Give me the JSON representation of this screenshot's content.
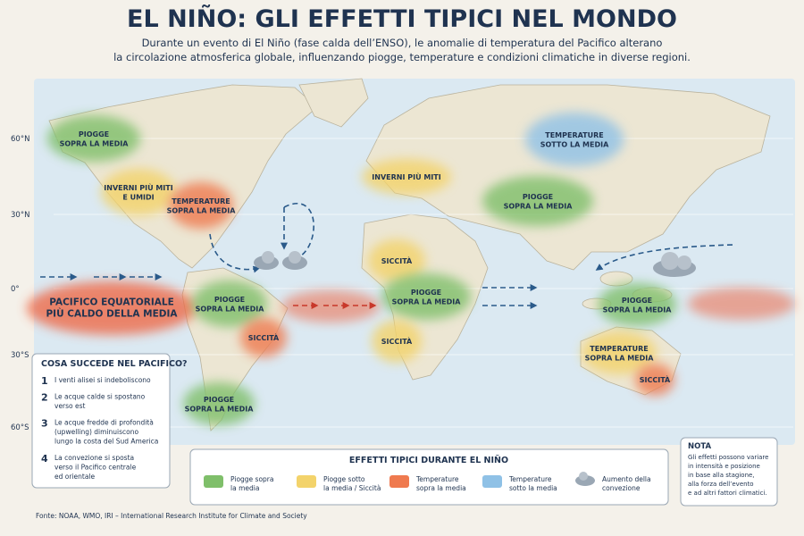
{
  "header": {
    "title": "EL NIÑO: GLI EFFETTI TIPICI NEL MONDO",
    "subtitle": [
      "Durante un evento di El Niño (fase calda dell’ENSO), le anomalie di temperatura del Pacifico alterano",
      "la circolazione atmosferica globale, influenzando piogge, temperature e condizioni climatiche in diverse regioni."
    ]
  },
  "latitudes": [
    "60°N",
    "30°N",
    "0°",
    "30°S",
    "60°S"
  ],
  "regions": [
    {
      "lines": [
        "PIOGGE",
        "SOPRA LA MEDIA"
      ],
      "color": "#7fbf6a"
    },
    {
      "lines": [
        "INVERNI PIÙ MITI",
        "E UMIDI"
      ],
      "color": "#f3d36b"
    },
    {
      "lines": [
        "TEMPERATURE",
        "SOPRA LA MEDIA"
      ],
      "color": "#ef7a4f"
    },
    {
      "lines": [
        "PACIFICO EQUATORIALE",
        "PIÙ CALDO DELLA MEDIA"
      ],
      "color": "#ee6a4a"
    },
    {
      "lines": [
        "PIOGGE",
        "SOPRA LA MEDIA"
      ],
      "color": "#7fbf6a"
    },
    {
      "lines": [
        "SICCITÀ"
      ],
      "color": "#ef7a4f"
    },
    {
      "lines": [
        "PIOGGE",
        "SOPRA LA MEDIA"
      ],
      "color": "#7fbf6a"
    },
    {
      "lines": [
        "INVERNI PIÙ MITI"
      ],
      "color": "#f3d36b"
    },
    {
      "lines": [
        "SICCITÀ"
      ],
      "color": "#f3d36b"
    },
    {
      "lines": [
        "PIOGGE",
        "SOPRA LA MEDIA"
      ],
      "color": "#7fbf6a"
    },
    {
      "lines": [
        "SICCITÀ"
      ],
      "color": "#f3d36b"
    },
    {
      "lines": [
        "TEMPERATURE",
        "SOTTO LA MEDIA"
      ],
      "color": "#8fc1e6"
    },
    {
      "lines": [
        "PIOGGE",
        "SOPRA LA MEDIA"
      ],
      "color": "#7fbf6a"
    },
    {
      "lines": [
        "PIOGGE",
        "SOPRA LA MEDIA"
      ],
      "color": "#7fbf6a"
    },
    {
      "lines": [
        "TEMPERATURE",
        "SOPRA LA MEDIA"
      ],
      "color": "#f3d36b"
    },
    {
      "lines": [
        "SICCITÀ"
      ],
      "color": "#ef7a4f"
    }
  ],
  "pacific_box": {
    "title": "COSA SUCCEDE NEL PACIFICO?",
    "steps": [
      {
        "number": 1,
        "lines": [
          "I venti alisei si indeboliscono"
        ]
      },
      {
        "number": 2,
        "lines": [
          "Le acque calde si spostano",
          "verso est"
        ]
      },
      {
        "number": 3,
        "lines": [
          "Le acque fredde di profondità",
          "(upwelling) diminuiscono",
          "lungo la costa del Sud America"
        ]
      },
      {
        "number": 4,
        "lines": [
          "La convezione si sposta",
          "verso il Pacifico centrale",
          "ed orientale"
        ]
      }
    ]
  },
  "legend": {
    "title": "EFFETTI TIPICI DURANTE EL NIÑO",
    "items": [
      {
        "lines": [
          "Piogge sopra",
          "la media"
        ],
        "color": "#7fbf6a"
      },
      {
        "lines": [
          "Piogge sotto",
          "la media / Siccità"
        ],
        "color": "#f3d36b"
      },
      {
        "lines": [
          "Temperature",
          "sopra la media"
        ],
        "color": "#ef7a4f"
      },
      {
        "lines": [
          "Temperature",
          "sotto la media"
        ],
        "color": "#8fc1e6"
      },
      {
        "lines": [
          "Aumento della",
          "convezione"
        ]
      }
    ]
  },
  "note": {
    "title": "NOTA",
    "lines": [
      "Gli effetti possono variare",
      "in intensità e posizione",
      "in base alla stagione,",
      "alla forza dell’evento",
      "e ad altri fattori climatici."
    ]
  },
  "source": "Fonte: NOAA, WMO, IRI – International Research Institute for Climate and Society"
}
